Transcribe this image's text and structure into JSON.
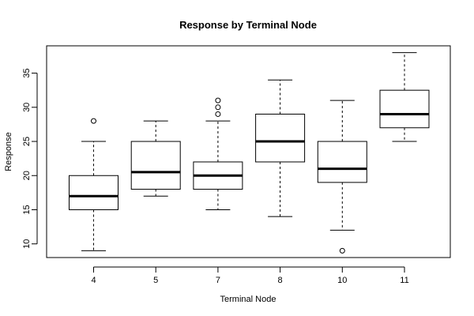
{
  "chart_data": {
    "type": "boxplot",
    "title": "Response by Terminal Node",
    "xlabel": "Terminal Node",
    "ylabel": "Response",
    "categories": [
      "4",
      "5",
      "7",
      "8",
      "10",
      "11"
    ],
    "y_ticks": [
      "10",
      "15",
      "20",
      "25",
      "30",
      "35"
    ],
    "ylim": [
      8,
      39
    ],
    "grid": false,
    "legend": "none",
    "boxes": [
      {
        "category": "4",
        "whisker_low": 9,
        "q1": 15,
        "median": 17,
        "q3": 20,
        "whisker_high": 25,
        "outliers": [
          28
        ]
      },
      {
        "category": "5",
        "whisker_low": 17,
        "q1": 18,
        "median": 20.5,
        "q3": 25,
        "whisker_high": 28,
        "outliers": []
      },
      {
        "category": "7",
        "whisker_low": 15,
        "q1": 18,
        "median": 20,
        "q3": 22,
        "whisker_high": 28,
        "outliers": [
          29,
          30,
          31
        ]
      },
      {
        "category": "8",
        "whisker_low": 14,
        "q1": 22,
        "median": 25,
        "q3": 29,
        "whisker_high": 34,
        "outliers": []
      },
      {
        "category": "10",
        "whisker_low": 12,
        "q1": 19,
        "median": 21,
        "q3": 25,
        "whisker_high": 31,
        "outliers": [
          9
        ]
      },
      {
        "category": "11",
        "whisker_low": 25,
        "q1": 27,
        "median": 29,
        "q3": 32.5,
        "whisker_high": 38,
        "outliers": []
      }
    ]
  }
}
